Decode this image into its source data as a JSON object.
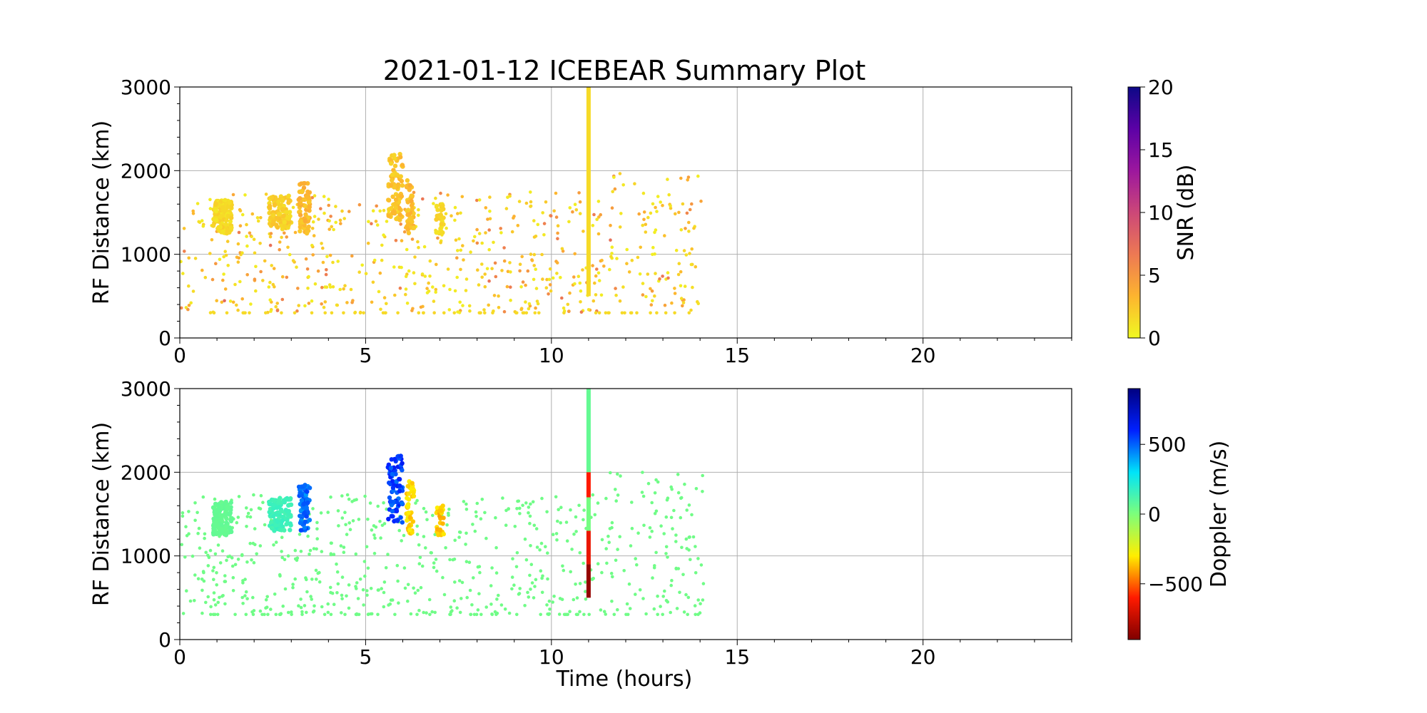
{
  "title": "2021-01-12 ICEBEAR Summary Plot",
  "xlabel": "Time (hours)",
  "chart_data": [
    {
      "type": "scatter",
      "title": "2021-01-12 ICEBEAR Summary Plot",
      "xlabel": "",
      "ylabel": "RF Distance (km)",
      "xlim": [
        0,
        24
      ],
      "ylim": [
        0,
        3000
      ],
      "xticks": [
        0,
        5,
        10,
        15,
        20
      ],
      "yticks": [
        0,
        1000,
        2000,
        3000
      ],
      "grid": true,
      "colorbar": {
        "label": "SNR (dB)",
        "range": [
          0,
          20
        ],
        "ticks": [
          0,
          5,
          10,
          15,
          20
        ],
        "colormap": "plasma_r",
        "stops": [
          "#f0f921",
          "#fdb42f",
          "#ed7953",
          "#cc4778",
          "#9c179e",
          "#5c01a6",
          "#0d0887"
        ]
      },
      "clusters": [
        {
          "t": [
            0.9,
            1.4
          ],
          "r": [
            1250,
            1650
          ],
          "n": 140,
          "v": 1.5
        },
        {
          "t": [
            2.4,
            3.0
          ],
          "r": [
            1300,
            1700
          ],
          "n": 110,
          "v": 2
        },
        {
          "t": [
            3.2,
            3.5
          ],
          "r": [
            1250,
            1850
          ],
          "n": 70,
          "v": 3
        },
        {
          "t": [
            5.6,
            6.0
          ],
          "r": [
            1400,
            2200
          ],
          "n": 80,
          "v": 2.5
        },
        {
          "t": [
            6.1,
            6.3
          ],
          "r": [
            1250,
            1900
          ],
          "n": 50,
          "v": 3
        },
        {
          "t": [
            6.9,
            7.1
          ],
          "r": [
            1250,
            1600
          ],
          "n": 30,
          "v": 1.5
        }
      ],
      "scatter": {
        "t": [
          0,
          14.1
        ],
        "r": [
          300,
          2000
        ],
        "n": 620,
        "v": [
          0.5,
          8
        ]
      },
      "baseline": {
        "t": [
          0.5,
          14.1
        ],
        "r": 300,
        "n": 55,
        "v": 1.5
      },
      "vertical_bar": {
        "t": 11.0,
        "r": [
          500,
          3000
        ],
        "v": 1.5,
        "colors": []
      }
    },
    {
      "type": "scatter",
      "title": "",
      "xlabel": "Time (hours)",
      "ylabel": "RF Distance (km)",
      "xlim": [
        0,
        24
      ],
      "ylim": [
        0,
        3000
      ],
      "xticks": [
        0,
        5,
        10,
        15,
        20
      ],
      "yticks": [
        0,
        1000,
        2000,
        3000
      ],
      "grid": true,
      "colorbar": {
        "label": "Doppler (m/s)",
        "range": [
          -900,
          900
        ],
        "ticks": [
          -500,
          0,
          500
        ],
        "colormap": "jet_r",
        "stops": [
          "#800000",
          "#ff1a00",
          "#ffee00",
          "#7dff7a",
          "#00e4f8",
          "#0020ff",
          "#000080"
        ]
      },
      "clusters": [
        {
          "t": [
            0.9,
            1.4
          ],
          "r": [
            1250,
            1650
          ],
          "n": 140,
          "v": 60
        },
        {
          "t": [
            2.4,
            3.0
          ],
          "r": [
            1300,
            1700
          ],
          "n": 110,
          "v": 150
        },
        {
          "t": [
            3.2,
            3.5
          ],
          "r": [
            1300,
            1850
          ],
          "n": 70,
          "v": 480
        },
        {
          "t": [
            5.6,
            6.0
          ],
          "r": [
            1400,
            2200
          ],
          "n": 80,
          "v": 550
        },
        {
          "t": [
            6.1,
            6.3
          ],
          "r": [
            1250,
            1900
          ],
          "n": 50,
          "v": -330
        },
        {
          "t": [
            6.9,
            7.1
          ],
          "r": [
            1250,
            1600
          ],
          "n": 30,
          "v": -350
        }
      ],
      "scatter": {
        "t": [
          0,
          14.1
        ],
        "r": [
          300,
          2000
        ],
        "n": 620,
        "v": [
          30,
          30
        ]
      },
      "baseline": {
        "t": [
          0.5,
          14.1
        ],
        "r": 300,
        "n": 55,
        "v": 30
      },
      "vertical_bar": {
        "t": 11.0,
        "r": [
          500,
          3000
        ],
        "v": 50,
        "colors": [
          {
            "r": [
              2000,
              3000
            ],
            "v": 60
          },
          {
            "r": [
              1700,
              2000
            ],
            "v": -600
          },
          {
            "r": [
              1300,
              1700
            ],
            "v": 20
          },
          {
            "r": [
              900,
              1300
            ],
            "v": -650
          },
          {
            "r": [
              500,
              900
            ],
            "v": -850
          }
        ]
      }
    }
  ]
}
